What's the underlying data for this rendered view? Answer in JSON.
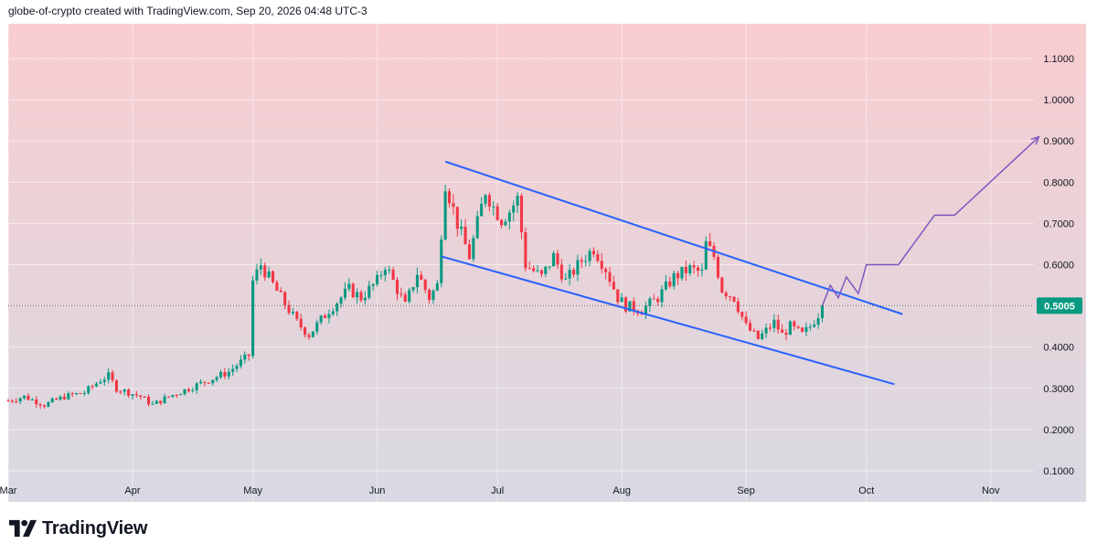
{
  "header": {
    "author": "globe-of-crypto",
    "created_text": " created with TradingView.com, ",
    "timestamp": "Sep 20, 2026 04:48 UTC-3"
  },
  "branding": {
    "logo_text": "TradingView",
    "logo_icon": "tradingview-logo-icon"
  },
  "colors": {
    "up": "#089981",
    "down": "#f23645",
    "channel": "#2962ff",
    "projection": "#7e57c2",
    "bg_top": "#f8cdd0",
    "bg_bottom": "#d8d9e2",
    "last_price_bg": "#089981"
  },
  "chart_data": {
    "type": "candlestick",
    "price_axis": {
      "ticks": [
        "0.1000",
        "0.2000",
        "0.3000",
        "0.4000",
        "0.5000",
        "0.6000",
        "0.7000",
        "0.8000",
        "0.9000",
        "1.0000",
        "1.1000"
      ],
      "range": [
        0.0,
        1.17
      ]
    },
    "time_axis": {
      "labels": [
        "Mar",
        "Apr",
        "May",
        "Jun",
        "Jul",
        "Aug",
        "Sep",
        "Oct",
        "Nov"
      ],
      "dates": [
        "2026-03-01",
        "2026-04-01",
        "2026-05-01",
        "2026-06-01",
        "2026-07-01",
        "2026-08-01",
        "2026-09-01",
        "2026-10-01",
        "2026-11-01"
      ],
      "range": [
        "2026-03-01",
        "2026-11-25"
      ]
    },
    "last_price": "0.5005",
    "gridlines": true,
    "anchors": [
      [
        "2026-03-01",
        0.27
      ],
      [
        "2026-03-05",
        0.28
      ],
      [
        "2026-03-10",
        0.26
      ],
      [
        "2026-03-15",
        0.28
      ],
      [
        "2026-03-20",
        0.29
      ],
      [
        "2026-03-24",
        0.32
      ],
      [
        "2026-03-26",
        0.33
      ],
      [
        "2026-03-28",
        0.3
      ],
      [
        "2026-04-03",
        0.28
      ],
      [
        "2026-04-06",
        0.26
      ],
      [
        "2026-04-10",
        0.28
      ],
      [
        "2026-04-15",
        0.3
      ],
      [
        "2026-04-20",
        0.32
      ],
      [
        "2026-04-25",
        0.34
      ],
      [
        "2026-04-30",
        0.38
      ],
      [
        "2026-05-01",
        0.56
      ],
      [
        "2026-05-03",
        0.6
      ],
      [
        "2026-05-08",
        0.52
      ],
      [
        "2026-05-12",
        0.46
      ],
      [
        "2026-05-15",
        0.43
      ],
      [
        "2026-05-20",
        0.49
      ],
      [
        "2026-05-25",
        0.54
      ],
      [
        "2026-05-28",
        0.52
      ],
      [
        "2026-06-01",
        0.56
      ],
      [
        "2026-06-03",
        0.6
      ],
      [
        "2026-06-06",
        0.54
      ],
      [
        "2026-06-08",
        0.5
      ],
      [
        "2026-06-11",
        0.58
      ],
      [
        "2026-06-14",
        0.52
      ],
      [
        "2026-06-16",
        0.55
      ],
      [
        "2026-06-17",
        0.68
      ],
      [
        "2026-06-18",
        0.8
      ],
      [
        "2026-06-21",
        0.7
      ],
      [
        "2026-06-24",
        0.62
      ],
      [
        "2026-06-26",
        0.7
      ],
      [
        "2026-06-28",
        0.78
      ],
      [
        "2026-06-30",
        0.74
      ],
      [
        "2026-07-02",
        0.71
      ],
      [
        "2026-07-04",
        0.73
      ],
      [
        "2026-07-06",
        0.76
      ],
      [
        "2026-07-08",
        0.6
      ],
      [
        "2026-07-12",
        0.57
      ],
      [
        "2026-07-15",
        0.62
      ],
      [
        "2026-07-18",
        0.56
      ],
      [
        "2026-07-22",
        0.61
      ],
      [
        "2026-07-25",
        0.64
      ],
      [
        "2026-07-28",
        0.59
      ],
      [
        "2026-07-31",
        0.52
      ],
      [
        "2026-08-02",
        0.5
      ],
      [
        "2026-08-06",
        0.49
      ],
      [
        "2026-08-10",
        0.52
      ],
      [
        "2026-08-14",
        0.57
      ],
      [
        "2026-08-18",
        0.59
      ],
      [
        "2026-08-21",
        0.58
      ],
      [
        "2026-08-22",
        0.65
      ],
      [
        "2026-08-24",
        0.62
      ],
      [
        "2026-08-26",
        0.54
      ],
      [
        "2026-08-29",
        0.52
      ],
      [
        "2026-09-01",
        0.45
      ],
      [
        "2026-09-04",
        0.42
      ],
      [
        "2026-09-06",
        0.44
      ],
      [
        "2026-09-08",
        0.46
      ],
      [
        "2026-09-10",
        0.43
      ],
      [
        "2026-09-12",
        0.45
      ],
      [
        "2026-09-15",
        0.43
      ],
      [
        "2026-09-17",
        0.45
      ],
      [
        "2026-09-19",
        0.48
      ],
      [
        "2026-09-20",
        0.5005
      ]
    ],
    "channel_upper": [
      [
        "2026-06-18",
        0.85
      ],
      [
        "2026-10-10",
        0.48
      ]
    ],
    "channel_lower": [
      [
        "2026-06-17",
        0.62
      ],
      [
        "2026-10-08",
        0.31
      ]
    ],
    "projection_path": [
      [
        "2026-09-20",
        0.5
      ],
      [
        "2026-09-22",
        0.55
      ],
      [
        "2026-09-24",
        0.52
      ],
      [
        "2026-09-26",
        0.57
      ],
      [
        "2026-09-29",
        0.53
      ],
      [
        "2026-10-01",
        0.6
      ],
      [
        "2026-10-09",
        0.6
      ],
      [
        "2026-10-18",
        0.72
      ],
      [
        "2026-10-23",
        0.72
      ],
      [
        "2026-11-13",
        0.91
      ]
    ]
  }
}
